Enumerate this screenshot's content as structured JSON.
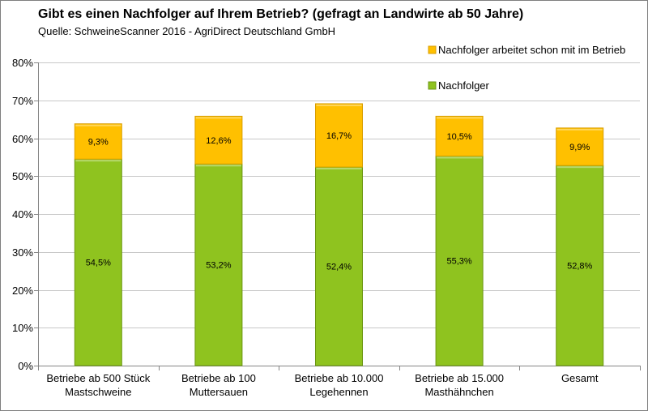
{
  "title": "Gibt es einen Nachfolger auf Ihrem Betrieb? (gefragt an Landwirte ab 50 Jahre)",
  "subtitle": "Quelle: SchweineScanner 2016 - AgriDirect Deutschland GmbH",
  "colors": {
    "nachfolger": "#8fc31f",
    "nachfolger_edge": "#6b9612",
    "arbeitet": "#ffc000",
    "arbeitet_edge": "#d99e00",
    "grid": "#c8c8c8",
    "axis": "#868686"
  },
  "chart_data": {
    "type": "bar",
    "stacked": true,
    "categories": [
      [
        "Betriebe ab 500 Stück",
        "Mastschweine"
      ],
      [
        "Betriebe ab 100",
        "Muttersauen"
      ],
      [
        "Betriebe ab 10.000",
        "Legehennen"
      ],
      [
        "Betriebe ab 15.000",
        "Masthähnchen"
      ],
      [
        "Gesamt"
      ]
    ],
    "series": [
      {
        "name": "Nachfolger",
        "color_key": "nachfolger",
        "values": [
          54.5,
          53.2,
          52.4,
          55.3,
          52.8
        ],
        "labels": [
          "54,5%",
          "53,2%",
          "52,4%",
          "55,3%",
          "52,8%"
        ]
      },
      {
        "name": "Nachfolger arbeitet schon mit im Betrieb",
        "color_key": "arbeitet",
        "values": [
          9.3,
          12.6,
          16.7,
          10.5,
          9.9
        ],
        "labels": [
          "9,3%",
          "12,6%",
          "16,7%",
          "10,5%",
          "9,9%"
        ]
      }
    ],
    "ylim": [
      0,
      80
    ],
    "yticks": [
      {
        "value": 0,
        "label": "0%"
      },
      {
        "value": 10,
        "label": "10%"
      },
      {
        "value": 20,
        "label": "20%"
      },
      {
        "value": 30,
        "label": "30%"
      },
      {
        "value": 40,
        "label": "40%"
      },
      {
        "value": 50,
        "label": "50%"
      },
      {
        "value": 60,
        "label": "60%"
      },
      {
        "value": 70,
        "label": "70%"
      },
      {
        "value": 80,
        "label": "80%"
      }
    ],
    "grid": true,
    "legend_position": "top-right",
    "legend_order": [
      "Nachfolger arbeitet schon mit im Betrieb",
      "Nachfolger"
    ]
  }
}
